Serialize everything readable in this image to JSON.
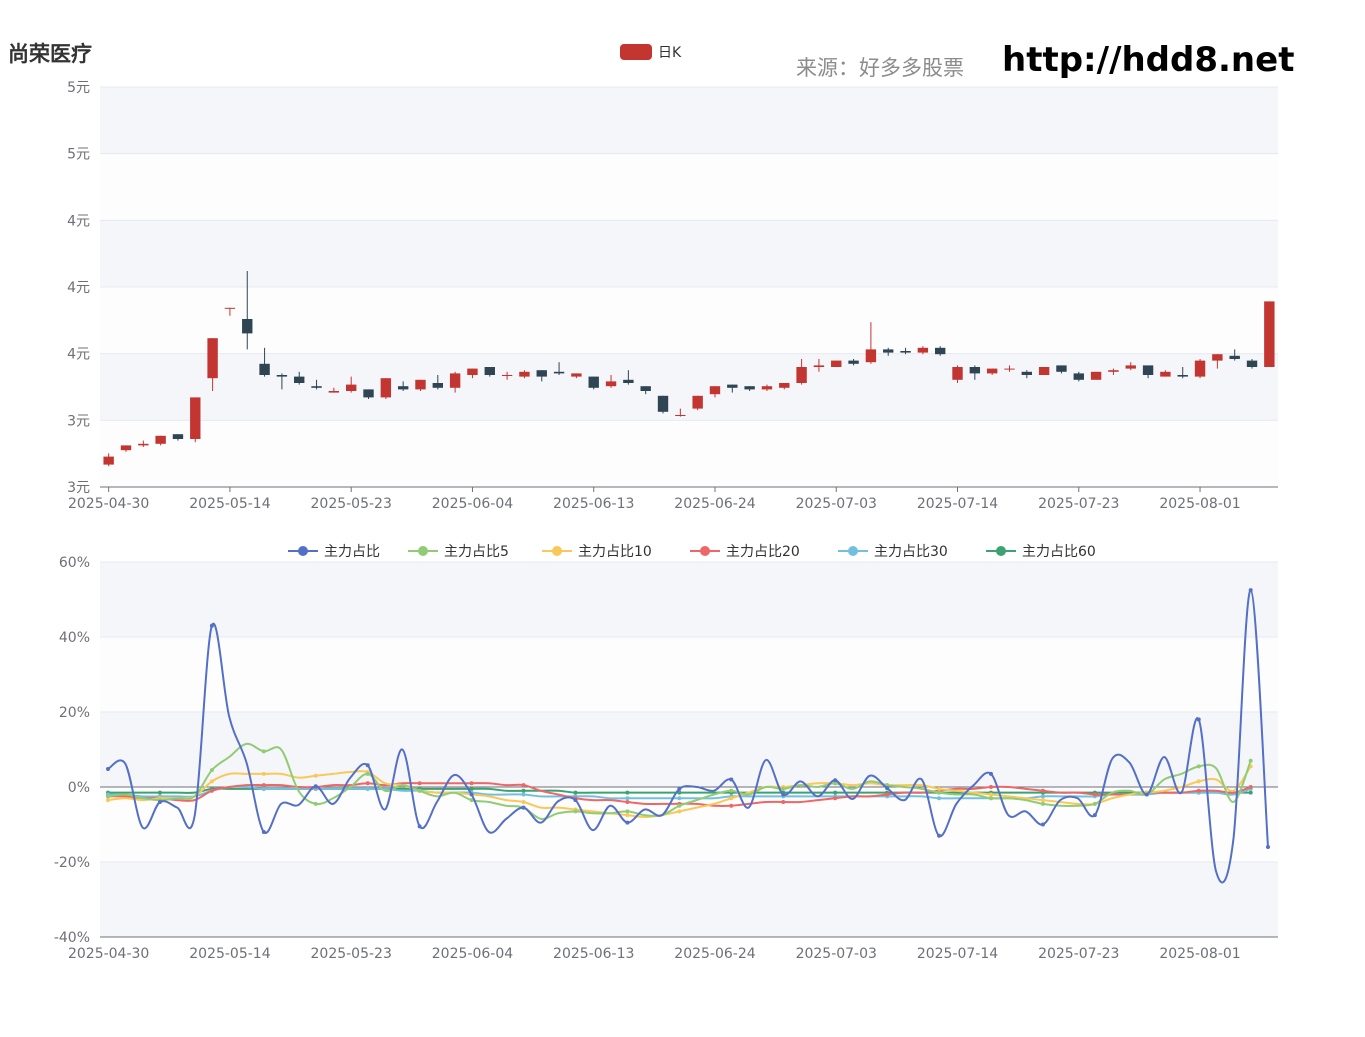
{
  "header": {
    "title": "尚荣医疗",
    "source": "来源：好多多股票",
    "url": "http://hdd8.net"
  },
  "colors": {
    "up": "#c23531",
    "down": "#2f4554",
    "grid_band": "#f5f6fa",
    "grid_line": "#e6e9f0",
    "axis": "#6e7079"
  },
  "chart_data": [
    {
      "type": "candlestick",
      "legend": "日K",
      "ylim": [
        3.0,
        5.5
      ],
      "y_ticks": [
        "3元",
        "3元",
        "4元",
        "4元",
        "4元",
        "5元",
        "5元"
      ],
      "x_tick_labels": [
        "2025-04-30",
        "2025-05-14",
        "2025-05-23",
        "2025-06-04",
        "2025-06-13",
        "2025-06-24",
        "2025-07-03",
        "2025-07-14",
        "2025-07-23",
        "2025-08-01"
      ],
      "candles": [
        {
          "o": 3.14,
          "c": 3.19,
          "l": 3.13,
          "h": 3.21
        },
        {
          "o": 3.23,
          "c": 3.26,
          "l": 3.22,
          "h": 3.26
        },
        {
          "o": 3.26,
          "c": 3.27,
          "l": 3.25,
          "h": 3.29
        },
        {
          "o": 3.27,
          "c": 3.32,
          "l": 3.26,
          "h": 3.32
        },
        {
          "o": 3.33,
          "c": 3.3,
          "l": 3.29,
          "h": 3.33
        },
        {
          "o": 3.3,
          "c": 3.56,
          "l": 3.28,
          "h": 3.56
        },
        {
          "o": 3.68,
          "c": 3.93,
          "l": 3.6,
          "h": 3.93
        },
        {
          "o": 4.12,
          "c": 4.12,
          "l": 4.07,
          "h": 4.12
        },
        {
          "o": 4.05,
          "c": 3.96,
          "l": 3.86,
          "h": 4.35
        },
        {
          "o": 3.77,
          "c": 3.7,
          "l": 3.69,
          "h": 3.87
        },
        {
          "o": 3.7,
          "c": 3.69,
          "l": 3.61,
          "h": 3.71
        },
        {
          "o": 3.69,
          "c": 3.65,
          "l": 3.64,
          "h": 3.72
        },
        {
          "o": 3.63,
          "c": 3.62,
          "l": 3.61,
          "h": 3.67
        },
        {
          "o": 3.59,
          "c": 3.6,
          "l": 3.59,
          "h": 3.62
        },
        {
          "o": 3.6,
          "c": 3.64,
          "l": 3.59,
          "h": 3.69
        },
        {
          "o": 3.61,
          "c": 3.56,
          "l": 3.55,
          "h": 3.61
        },
        {
          "o": 3.56,
          "c": 3.68,
          "l": 3.55,
          "h": 3.68
        },
        {
          "o": 3.63,
          "c": 3.61,
          "l": 3.6,
          "h": 3.66
        },
        {
          "o": 3.61,
          "c": 3.67,
          "l": 3.6,
          "h": 3.67
        },
        {
          "o": 3.65,
          "c": 3.62,
          "l": 3.61,
          "h": 3.7
        },
        {
          "o": 3.62,
          "c": 3.71,
          "l": 3.59,
          "h": 3.72
        },
        {
          "o": 3.7,
          "c": 3.74,
          "l": 3.68,
          "h": 3.74
        },
        {
          "o": 3.75,
          "c": 3.7,
          "l": 3.69,
          "h": 3.75
        },
        {
          "o": 3.7,
          "c": 3.7,
          "l": 3.67,
          "h": 3.72
        },
        {
          "o": 3.69,
          "c": 3.72,
          "l": 3.68,
          "h": 3.73
        },
        {
          "o": 3.73,
          "c": 3.69,
          "l": 3.66,
          "h": 3.73
        },
        {
          "o": 3.72,
          "c": 3.71,
          "l": 3.7,
          "h": 3.78
        },
        {
          "o": 3.69,
          "c": 3.71,
          "l": 3.68,
          "h": 3.71
        },
        {
          "o": 3.69,
          "c": 3.62,
          "l": 3.61,
          "h": 3.69
        },
        {
          "o": 3.63,
          "c": 3.66,
          "l": 3.62,
          "h": 3.7
        },
        {
          "o": 3.67,
          "c": 3.65,
          "l": 3.64,
          "h": 3.73
        },
        {
          "o": 3.63,
          "c": 3.6,
          "l": 3.58,
          "h": 3.63
        },
        {
          "o": 3.57,
          "c": 3.47,
          "l": 3.46,
          "h": 3.57
        },
        {
          "o": 3.45,
          "c": 3.45,
          "l": 3.44,
          "h": 3.49
        },
        {
          "o": 3.49,
          "c": 3.57,
          "l": 3.48,
          "h": 3.57
        },
        {
          "o": 3.58,
          "c": 3.63,
          "l": 3.56,
          "h": 3.63
        },
        {
          "o": 3.64,
          "c": 3.62,
          "l": 3.59,
          "h": 3.64
        },
        {
          "o": 3.63,
          "c": 3.61,
          "l": 3.6,
          "h": 3.63
        },
        {
          "o": 3.61,
          "c": 3.63,
          "l": 3.6,
          "h": 3.64
        },
        {
          "o": 3.62,
          "c": 3.65,
          "l": 3.61,
          "h": 3.65
        },
        {
          "o": 3.65,
          "c": 3.75,
          "l": 3.64,
          "h": 3.8
        },
        {
          "o": 3.75,
          "c": 3.76,
          "l": 3.72,
          "h": 3.8
        },
        {
          "o": 3.75,
          "c": 3.79,
          "l": 3.75,
          "h": 3.79
        },
        {
          "o": 3.79,
          "c": 3.77,
          "l": 3.76,
          "h": 3.8
        },
        {
          "o": 3.78,
          "c": 3.86,
          "l": 3.77,
          "h": 4.03
        },
        {
          "o": 3.86,
          "c": 3.84,
          "l": 3.82,
          "h": 3.87
        },
        {
          "o": 3.85,
          "c": 3.84,
          "l": 3.83,
          "h": 3.87
        },
        {
          "o": 3.84,
          "c": 3.87,
          "l": 3.83,
          "h": 3.88
        },
        {
          "o": 3.87,
          "c": 3.83,
          "l": 3.82,
          "h": 3.88
        },
        {
          "o": 3.67,
          "c": 3.75,
          "l": 3.65,
          "h": 3.76
        },
        {
          "o": 3.75,
          "c": 3.71,
          "l": 3.67,
          "h": 3.76
        },
        {
          "o": 3.71,
          "c": 3.74,
          "l": 3.7,
          "h": 3.74
        },
        {
          "o": 3.74,
          "c": 3.74,
          "l": 3.72,
          "h": 3.76
        },
        {
          "o": 3.72,
          "c": 3.7,
          "l": 3.68,
          "h": 3.73
        },
        {
          "o": 3.7,
          "c": 3.75,
          "l": 3.7,
          "h": 3.75
        },
        {
          "o": 3.76,
          "c": 3.72,
          "l": 3.71,
          "h": 3.76
        },
        {
          "o": 3.71,
          "c": 3.67,
          "l": 3.66,
          "h": 3.72
        },
        {
          "o": 3.67,
          "c": 3.72,
          "l": 3.67,
          "h": 3.72
        },
        {
          "o": 3.72,
          "c": 3.73,
          "l": 3.7,
          "h": 3.74
        },
        {
          "o": 3.74,
          "c": 3.76,
          "l": 3.73,
          "h": 3.78
        },
        {
          "o": 3.76,
          "c": 3.7,
          "l": 3.68,
          "h": 3.76
        },
        {
          "o": 3.69,
          "c": 3.72,
          "l": 3.69,
          "h": 3.73
        },
        {
          "o": 3.7,
          "c": 3.69,
          "l": 3.68,
          "h": 3.75
        },
        {
          "o": 3.69,
          "c": 3.79,
          "l": 3.68,
          "h": 3.8
        },
        {
          "o": 3.79,
          "c": 3.83,
          "l": 3.74,
          "h": 3.83
        },
        {
          "o": 3.82,
          "c": 3.8,
          "l": 3.79,
          "h": 3.86
        },
        {
          "o": 3.79,
          "c": 3.75,
          "l": 3.74,
          "h": 3.8
        },
        {
          "o": 3.75,
          "c": 4.16,
          "l": 3.75,
          "h": 4.16
        }
      ]
    },
    {
      "type": "line",
      "ylim": [
        -40,
        60
      ],
      "y_ticks": [
        "-40%",
        "-20%",
        "0%",
        "20%",
        "40%",
        "60%"
      ],
      "x_tick_labels": [
        "2025-04-30",
        "2025-05-14",
        "2025-05-23",
        "2025-06-04",
        "2025-06-13",
        "2025-06-24",
        "2025-07-03",
        "2025-07-14",
        "2025-07-23",
        "2025-08-01"
      ],
      "series": [
        {
          "name": "主力占比",
          "color": "#5470c6",
          "values": [
            4.8,
            6.2,
            -10.8,
            -4.0,
            -5.5,
            -7.8,
            43,
            18.8,
            6.5,
            -12.0,
            -4.5,
            -4.8,
            0.2,
            -4.5,
            2.5,
            5.8,
            -6.0,
            10.0,
            -10.5,
            -4.0,
            3.2,
            -2.0,
            -12.0,
            -8.5,
            -5.5,
            -9.5,
            -3.8,
            -3.5,
            -11.5,
            -5.0,
            -9.5,
            -6.0,
            -7.5,
            -0.5,
            0.0,
            -1.0,
            2.0,
            -5.5,
            7.2,
            -2.0,
            1.5,
            -2.5,
            1.8,
            -3.2,
            3.0,
            -0.3,
            -3.5,
            2.0,
            -13.0,
            -4.5,
            0.5,
            3.5,
            -7.5,
            -6.5,
            -10.0,
            -3.5,
            -3.0,
            -7.5,
            7.5,
            6.5,
            -2.0,
            8.0,
            -1.5,
            18.0,
            -22.5,
            -14.0,
            52.5,
            -16.0
          ]
        },
        {
          "name": "主力占比5",
          "color": "#91cc75",
          "values": [
            -2.5,
            -2.0,
            -3.0,
            -3.5,
            -3.0,
            -2.5,
            4.5,
            8.0,
            11.5,
            9.5,
            10.0,
            -1.0,
            -4.5,
            -3.0,
            0.0,
            3.5,
            -1.0,
            0.5,
            -1.0,
            -2.5,
            -1.5,
            -3.5,
            -4.0,
            -5.0,
            -5.5,
            -8.5,
            -7.0,
            -6.5,
            -7.0,
            -7.0,
            -6.5,
            -7.5,
            -7.5,
            -5.0,
            -3.5,
            -2.0,
            -1.0,
            -2.0,
            0.0,
            -0.5,
            0.5,
            0.0,
            1.0,
            -0.5,
            1.5,
            0.5,
            0.0,
            -0.5,
            -1.5,
            -2.0,
            -2.0,
            -3.0,
            -3.0,
            -3.5,
            -4.5,
            -5.0,
            -5.0,
            -4.5,
            -1.5,
            -1.0,
            -2.0,
            2.0,
            3.5,
            5.5,
            5.0,
            -4.0,
            7.0
          ]
        },
        {
          "name": "主力占比10",
          "color": "#fac858",
          "values": [
            -3.5,
            -3.0,
            -3.5,
            -3.0,
            -3.0,
            -2.5,
            1.5,
            3.5,
            3.5,
            3.5,
            3.5,
            2.5,
            3.0,
            3.5,
            4.0,
            4.0,
            1.0,
            0.5,
            -1.0,
            -1.5,
            -1.5,
            -2.0,
            -2.5,
            -3.5,
            -4.0,
            -5.5,
            -5.5,
            -6.0,
            -6.5,
            -7.0,
            -7.5,
            -8.0,
            -7.5,
            -6.5,
            -5.5,
            -4.5,
            -3.0,
            -1.5,
            0.0,
            0.0,
            0.5,
            1.0,
            1.0,
            0.5,
            1.0,
            0.5,
            0.5,
            0.5,
            -0.5,
            -1.0,
            -1.5,
            -2.0,
            -2.5,
            -3.0,
            -3.5,
            -4.0,
            -4.5,
            -4.5,
            -3.0,
            -2.0,
            -1.5,
            -1.0,
            0.0,
            1.5,
            2.0,
            -1.0,
            5.5
          ]
        },
        {
          "name": "主力占比20",
          "color": "#ee6666",
          "values": [
            -2.5,
            -2.5,
            -3.0,
            -3.0,
            -3.5,
            -3.5,
            -1.0,
            0.0,
            0.5,
            0.5,
            0.5,
            0.0,
            0.0,
            0.5,
            0.5,
            1.0,
            0.5,
            1.0,
            1.0,
            1.0,
            1.0,
            1.0,
            1.0,
            0.5,
            0.5,
            -1.0,
            -2.0,
            -3.0,
            -3.5,
            -3.5,
            -4.0,
            -4.5,
            -4.5,
            -4.5,
            -4.5,
            -5.0,
            -5.0,
            -4.5,
            -4.0,
            -4.0,
            -4.0,
            -3.5,
            -3.0,
            -2.5,
            -2.5,
            -2.0,
            -1.5,
            -1.5,
            -1.0,
            -0.5,
            -0.5,
            0.0,
            0.0,
            -0.5,
            -1.0,
            -1.5,
            -1.5,
            -2.0,
            -2.0,
            -2.0,
            -1.5,
            -1.5,
            -1.5,
            -1.0,
            -1.0,
            -1.5,
            0.0
          ]
        },
        {
          "name": "主力占比30",
          "color": "#73c0de",
          "values": [
            -2.0,
            -2.0,
            -2.5,
            -2.5,
            -2.5,
            -2.5,
            -1.0,
            0.0,
            0.0,
            -0.5,
            -0.5,
            -0.5,
            -0.5,
            -0.5,
            -0.5,
            -0.5,
            -0.5,
            -1.0,
            -1.0,
            -1.5,
            -1.5,
            -1.5,
            -2.0,
            -2.0,
            -2.0,
            -2.5,
            -2.5,
            -2.5,
            -2.5,
            -3.0,
            -3.0,
            -3.0,
            -3.0,
            -3.0,
            -3.0,
            -3.0,
            -2.5,
            -2.5,
            -2.5,
            -2.5,
            -2.5,
            -2.5,
            -2.5,
            -2.5,
            -2.5,
            -2.5,
            -2.5,
            -2.5,
            -3.0,
            -3.0,
            -3.0,
            -3.0,
            -3.0,
            -3.0,
            -2.5,
            -2.5,
            -2.5,
            -2.5,
            -2.0,
            -2.0,
            -2.0,
            -1.5,
            -1.5,
            -1.5,
            -1.5,
            -2.0,
            -0.5
          ]
        },
        {
          "name": "主力占比60",
          "color": "#3ba272",
          "values": [
            -1.5,
            -1.5,
            -1.5,
            -1.5,
            -1.5,
            -1.5,
            -0.5,
            -0.5,
            -0.5,
            -0.5,
            -0.5,
            -0.5,
            -0.5,
            -0.5,
            -0.5,
            -0.5,
            -0.5,
            -0.5,
            -0.5,
            -0.5,
            -0.5,
            -0.5,
            -0.5,
            -1.0,
            -1.0,
            -1.0,
            -1.0,
            -1.5,
            -1.5,
            -1.5,
            -1.5,
            -1.5,
            -1.5,
            -1.5,
            -1.5,
            -1.5,
            -1.5,
            -1.5,
            -1.5,
            -1.5,
            -1.5,
            -1.5,
            -1.5,
            -1.5,
            -1.5,
            -1.5,
            -1.5,
            -1.5,
            -1.5,
            -1.5,
            -1.5,
            -1.5,
            -1.5,
            -1.5,
            -1.5,
            -1.5,
            -1.5,
            -1.5,
            -1.5,
            -1.5,
            -1.5,
            -1.5,
            -1.5,
            -1.5,
            -1.5,
            -1.5,
            -1.5
          ]
        }
      ]
    }
  ]
}
